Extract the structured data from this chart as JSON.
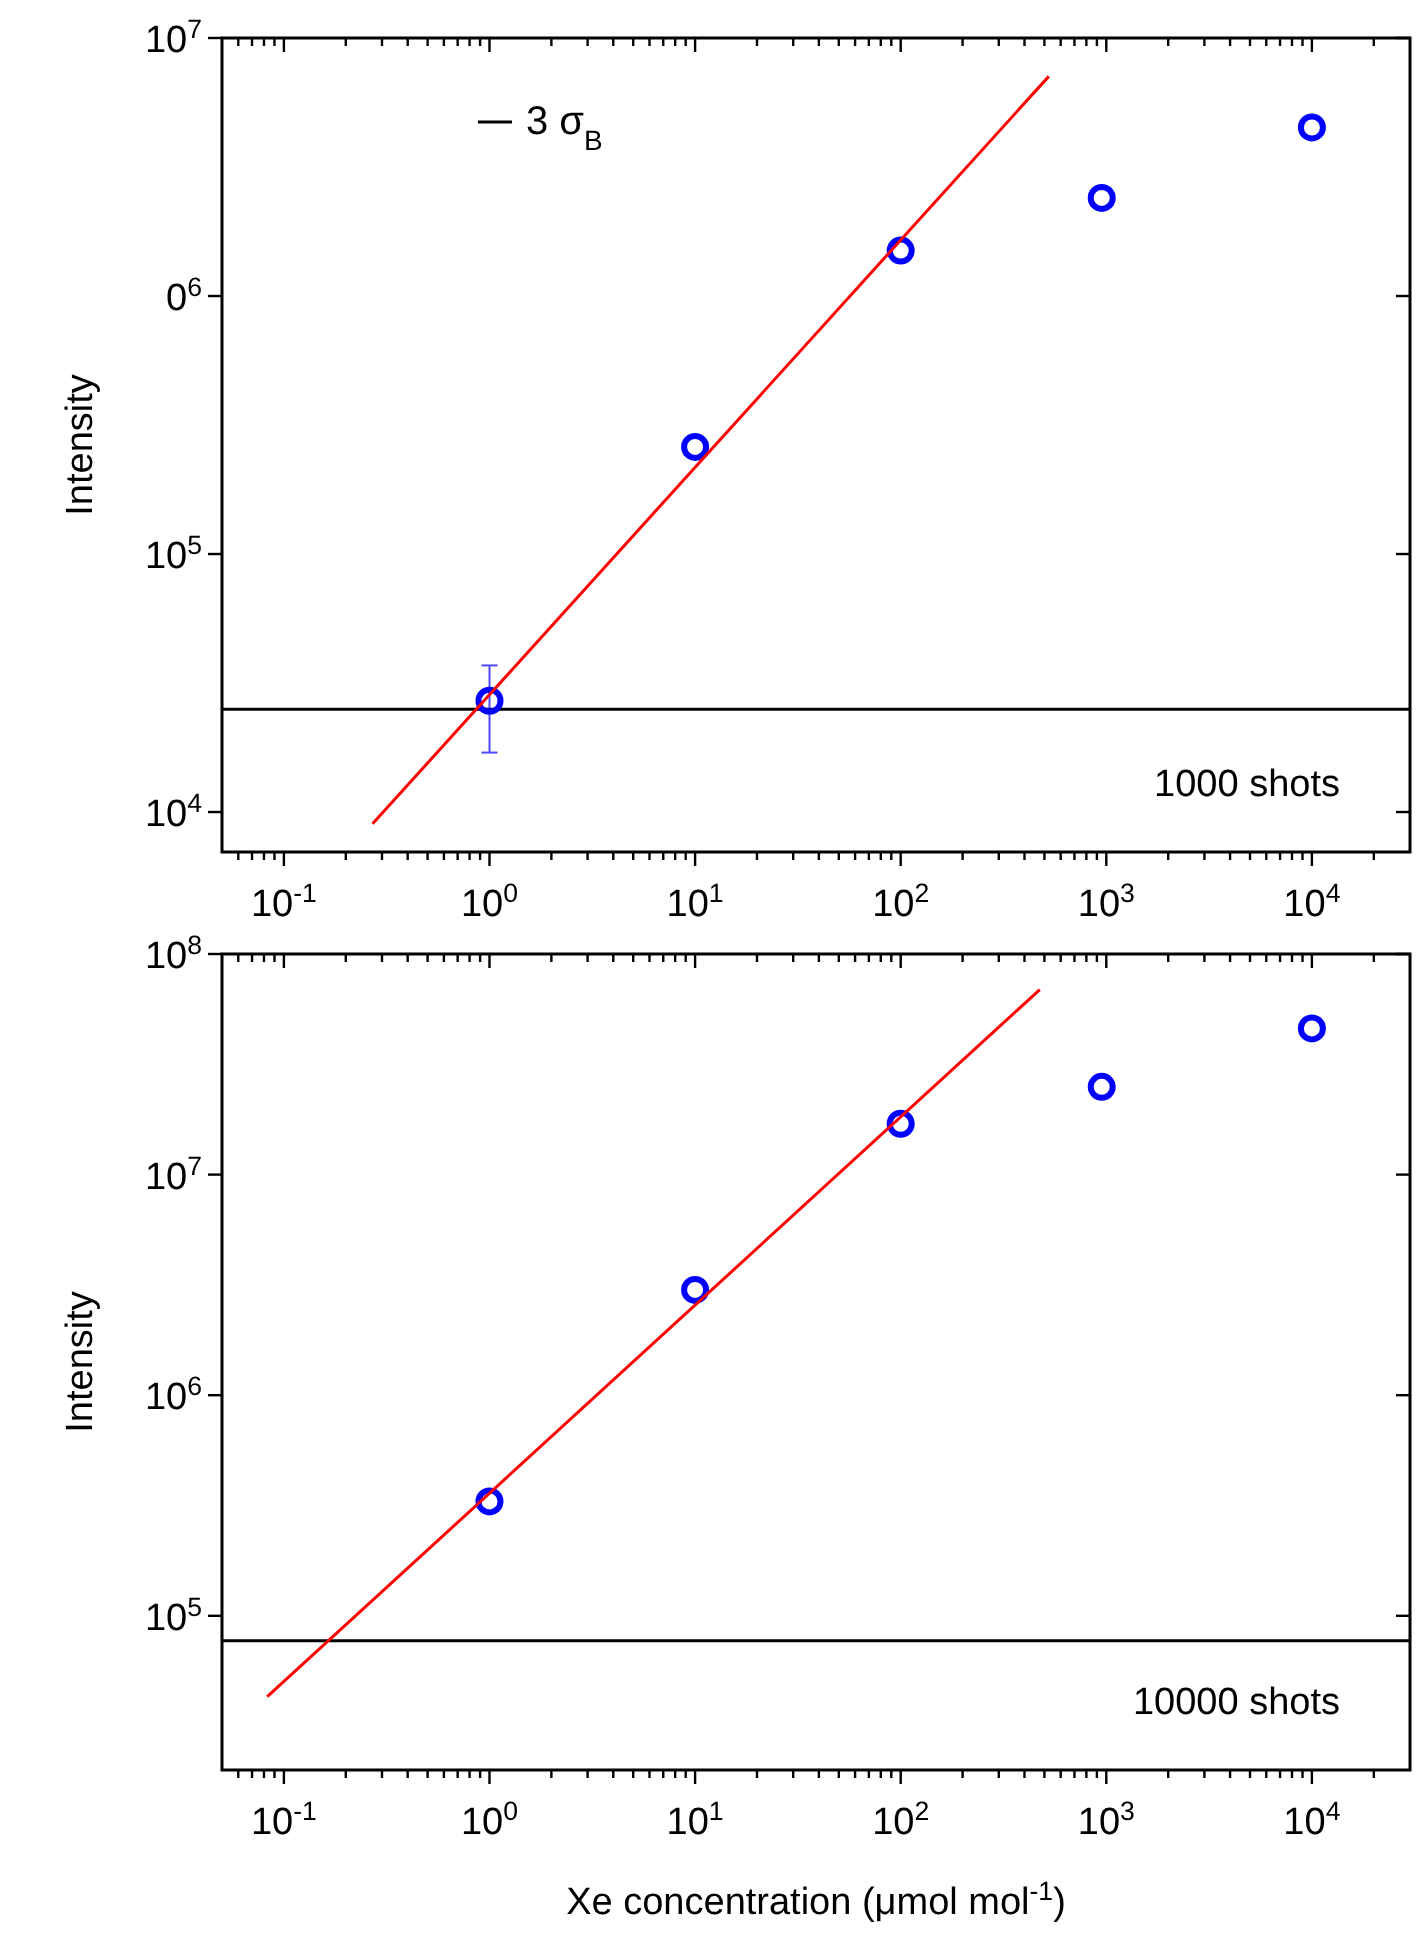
{
  "chart_data": [
    {
      "type": "scatter",
      "ylabel": "Intensity",
      "log": "xy",
      "grid": false,
      "marker": "circle",
      "legend": "top left",
      "xlim": [
        0.05,
        30000
      ],
      "xticks": [
        {
          "value": 0.06,
          "label": null
        },
        {
          "value": 0.07,
          "label": null
        },
        {
          "value": 0.08,
          "label": null
        },
        {
          "value": 0.09,
          "label": null
        },
        {
          "value": 0.1,
          "label": "10$^{-1}$"
        },
        {
          "value": 0.2,
          "label": null
        },
        {
          "value": 0.3,
          "label": null
        },
        {
          "value": 0.4,
          "label": null
        },
        {
          "value": 0.5,
          "label": null
        },
        {
          "value": 0.6,
          "label": null
        },
        {
          "value": 0.7,
          "label": null
        },
        {
          "value": 0.8,
          "label": null
        },
        {
          "value": 0.9,
          "label": null
        },
        {
          "value": 1,
          "label": "10$^{0}$"
        },
        {
          "value": 2,
          "label": null
        },
        {
          "value": 3,
          "label": null
        },
        {
          "value": 4,
          "label": null
        },
        {
          "value": 5,
          "label": null
        },
        {
          "value": 6,
          "label": null
        },
        {
          "value": 7,
          "label": null
        },
        {
          "value": 8,
          "label": null
        },
        {
          "value": 9,
          "label": null
        },
        {
          "value": 10,
          "label": "10$^{1}$"
        },
        {
          "value": 20,
          "label": null
        },
        {
          "value": 30,
          "label": null
        },
        {
          "value": 40,
          "label": null
        },
        {
          "value": 50,
          "label": null
        },
        {
          "value": 60,
          "label": null
        },
        {
          "value": 70,
          "label": null
        },
        {
          "value": 80,
          "label": null
        },
        {
          "value": 90,
          "label": null
        },
        {
          "value": 100,
          "label": "10$^{2}$"
        },
        {
          "value": 200,
          "label": null
        },
        {
          "value": 300,
          "label": null
        },
        {
          "value": 400,
          "label": null
        },
        {
          "value": 500,
          "label": null
        },
        {
          "value": 600,
          "label": null
        },
        {
          "value": 700,
          "label": null
        },
        {
          "value": 800,
          "label": null
        },
        {
          "value": 900,
          "label": null
        },
        {
          "value": 1000,
          "label": "10$^{3}$"
        },
        {
          "value": 2000,
          "label": null
        },
        {
          "value": 3000,
          "label": null
        },
        {
          "value": 4000,
          "label": null
        },
        {
          "value": 5000,
          "label": null
        },
        {
          "value": 6000,
          "label": null
        },
        {
          "value": 7000,
          "label": null
        },
        {
          "value": 8000,
          "label": null
        },
        {
          "value": 9000,
          "label": null
        },
        {
          "value": 10000,
          "label": "10$^{4}$"
        },
        {
          "value": 20000,
          "label": null
        }
      ],
      "ylim": [
        7000,
        10000000
      ],
      "yticks": [
        {
          "value": 10000,
          "label": "10$^{4}$"
        },
        {
          "value": 100000,
          "label": "10$^{5}$"
        },
        {
          "value": 1000000,
          "label": "0$^{6}$"
        },
        {
          "value": 10000000,
          "label": "10$^{7}$"
        }
      ],
      "series": [
        {
          "color": "#0000ff",
          "x": [
            1,
            10,
            100,
            950,
            10000
          ],
          "values": [
            27000,
            260000,
            1500000,
            2400000,
            4500000
          ],
          "errors": [
            [
              17000,
              37000
            ],
            null,
            null,
            null,
            null
          ]
        },
        {
          "type": "line",
          "color": "#ff0000",
          "x": [
            0.27,
            525
          ],
          "values": [
            9000,
            7100000
          ],
          "marker": "none"
        }
      ],
      "ref_lines": [
        {
          "axis": "y",
          "value": 25000,
          "label": "3 σ$_{B}$",
          "color": "#000000"
        }
      ],
      "annotations": [
        "1000 shots"
      ]
    },
    {
      "type": "scatter",
      "ylabel": "Intensity",
      "xlabel": "Xe concentration (μmol mol$^{-1}$)",
      "log": "xy",
      "grid": false,
      "marker": "circle",
      "xlim": [
        0.05,
        30000
      ],
      "xticks": [
        {
          "value": 0.06,
          "label": null
        },
        {
          "value": 0.07,
          "label": null
        },
        {
          "value": 0.08,
          "label": null
        },
        {
          "value": 0.09,
          "label": null
        },
        {
          "value": 0.1,
          "label": "10$^{-1}$"
        },
        {
          "value": 0.2,
          "label": null
        },
        {
          "value": 0.3,
          "label": null
        },
        {
          "value": 0.4,
          "label": null
        },
        {
          "value": 0.5,
          "label": null
        },
        {
          "value": 0.6,
          "label": null
        },
        {
          "value": 0.7,
          "label": null
        },
        {
          "value": 0.8,
          "label": null
        },
        {
          "value": 0.9,
          "label": null
        },
        {
          "value": 1,
          "label": "10$^{0}$"
        },
        {
          "value": 2,
          "label": null
        },
        {
          "value": 3,
          "label": null
        },
        {
          "value": 4,
          "label": null
        },
        {
          "value": 5,
          "label": null
        },
        {
          "value": 6,
          "label": null
        },
        {
          "value": 7,
          "label": null
        },
        {
          "value": 8,
          "label": null
        },
        {
          "value": 9,
          "label": null
        },
        {
          "value": 10,
          "label": "10$^{1}$"
        },
        {
          "value": 20,
          "label": null
        },
        {
          "value": 30,
          "label": null
        },
        {
          "value": 40,
          "label": null
        },
        {
          "value": 50,
          "label": null
        },
        {
          "value": 60,
          "label": null
        },
        {
          "value": 70,
          "label": null
        },
        {
          "value": 80,
          "label": null
        },
        {
          "value": 90,
          "label": null
        },
        {
          "value": 100,
          "label": "10$^{2}$"
        },
        {
          "value": 200,
          "label": null
        },
        {
          "value": 300,
          "label": null
        },
        {
          "value": 400,
          "label": null
        },
        {
          "value": 500,
          "label": null
        },
        {
          "value": 600,
          "label": null
        },
        {
          "value": 700,
          "label": null
        },
        {
          "value": 800,
          "label": null
        },
        {
          "value": 900,
          "label": null
        },
        {
          "value": 1000,
          "label": "10$^{3}$"
        },
        {
          "value": 2000,
          "label": null
        },
        {
          "value": 3000,
          "label": null
        },
        {
          "value": 4000,
          "label": null
        },
        {
          "value": 5000,
          "label": null
        },
        {
          "value": 6000,
          "label": null
        },
        {
          "value": 7000,
          "label": null
        },
        {
          "value": 8000,
          "label": null
        },
        {
          "value": 9000,
          "label": null
        },
        {
          "value": 10000,
          "label": "10$^{4}$"
        },
        {
          "value": 20000,
          "label": null
        }
      ],
      "ylim": [
        20000,
        100000000
      ],
      "yticks": [
        {
          "value": 100000,
          "label": "10$^{5}$"
        },
        {
          "value": 1000000,
          "label": "10$^{6}$"
        },
        {
          "value": 10000000,
          "label": "10$^{7}$"
        },
        {
          "value": 100000000,
          "label": "10$^{8}$"
        }
      ],
      "series": [
        {
          "color": "#0000ff",
          "x": [
            1,
            10,
            100,
            950,
            10000
          ],
          "values": [
            330000,
            3000000,
            17000000,
            25000000,
            46000000
          ]
        },
        {
          "type": "line",
          "color": "#ff0000",
          "x": [
            0.083,
            475
          ],
          "values": [
            43000,
            69000000
          ],
          "marker": "none"
        }
      ],
      "ref_lines": [
        {
          "axis": "y",
          "value": 77000,
          "color": "#000000"
        }
      ],
      "annotations": [
        "10000 shots"
      ]
    }
  ]
}
